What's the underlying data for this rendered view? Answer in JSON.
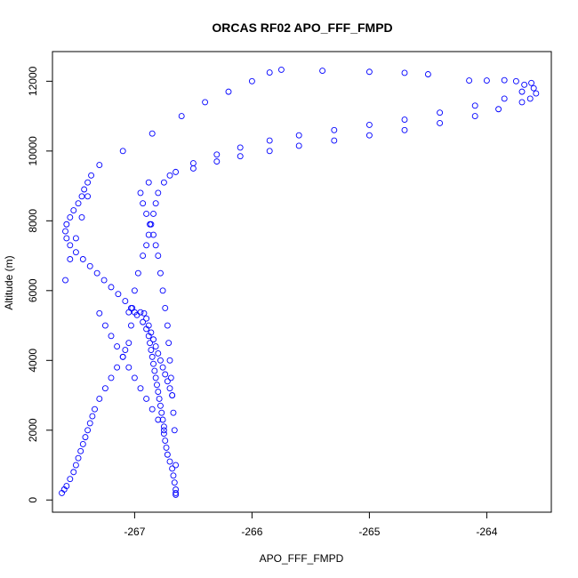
{
  "chart_data": {
    "type": "scatter",
    "title": "ORCAS RF02 APO_FFF_FMPD",
    "xlabel": "APO_FFF_FMPD",
    "ylabel": "Altitude (m)",
    "xlim": [
      -267.7,
      -263.45
    ],
    "ylim": [
      -350,
      12850
    ],
    "xticks": [
      -267,
      -266,
      -265,
      -264
    ],
    "yticks": [
      0,
      2000,
      4000,
      6000,
      8000,
      10000,
      12000
    ],
    "grid": false,
    "legend": "none",
    "marker_color": "#0000ff",
    "series": [
      {
        "x": [
          -266.65,
          -266.65,
          -266.66,
          -266.67,
          -266.68,
          -266.7,
          -266.72,
          -266.73,
          -266.74,
          -266.75,
          -266.75,
          -266.76,
          -266.77,
          -266.78,
          -266.79,
          -266.8,
          -266.81,
          -266.82,
          -266.83,
          -266.84,
          -266.85,
          -266.86,
          -266.87,
          -266.88,
          -266.9,
          -266.93,
          -266.98,
          -267.03,
          -267.08,
          -267.14,
          -267.2,
          -267.26,
          -267.32,
          -267.38,
          -267.44,
          -267.5,
          -267.55,
          -267.58,
          -267.59,
          -267.58,
          -267.55,
          -267.52,
          -267.48,
          -267.45,
          -267.43,
          -267.4,
          -267.37,
          -267.3,
          -267.1,
          -266.85,
          -266.6,
          -266.4,
          -266.2,
          -266.0,
          -265.85,
          -265.75,
          -265.4,
          -265.0,
          -264.7,
          -264.5
        ],
        "y": [
          150,
          300,
          500,
          700,
          900,
          1100,
          1300,
          1500,
          1700,
          1900,
          2100,
          2300,
          2500,
          2700,
          2900,
          3100,
          3300,
          3500,
          3700,
          3900,
          4100,
          4300,
          4500,
          4700,
          4900,
          5100,
          5300,
          5500,
          5700,
          5900,
          6100,
          6300,
          6500,
          6700,
          6900,
          7100,
          7300,
          7500,
          7700,
          7900,
          8100,
          8300,
          8500,
          8700,
          8900,
          9100,
          9300,
          9600,
          10000,
          10500,
          11000,
          11400,
          11700,
          12000,
          12250,
          12330,
          12300,
          12270,
          12240,
          12200
        ]
      },
      {
        "x": [
          -263.62,
          -263.6,
          -263.58,
          -263.63,
          -263.7,
          -263.9,
          -264.1,
          -264.4,
          -264.7,
          -265.0,
          -265.3,
          -265.6,
          -265.85,
          -266.1,
          -266.3,
          -266.5,
          -266.7,
          -266.88,
          -266.95,
          -266.93,
          -266.9,
          -266.87,
          -266.84,
          -266.82,
          -266.8,
          -266.78,
          -266.76,
          -266.74,
          -266.72,
          -266.71,
          -266.7,
          -266.69,
          -266.68,
          -266.67,
          -266.66,
          -266.65,
          -266.65
        ],
        "y": [
          11950,
          11800,
          11650,
          11500,
          11400,
          11200,
          11000,
          10800,
          10600,
          10450,
          10300,
          10150,
          10000,
          9850,
          9700,
          9500,
          9300,
          9100,
          8800,
          8500,
          8200,
          7900,
          7600,
          7300,
          7000,
          6500,
          6000,
          5500,
          5000,
          4500,
          4000,
          3500,
          3000,
          2500,
          2000,
          1000,
          200
        ]
      },
      {
        "x": [
          -264.15,
          -264.0,
          -263.85,
          -263.75,
          -263.68,
          -263.7,
          -263.85,
          -264.1,
          -264.4,
          -264.7,
          -265.0,
          -265.3,
          -265.6,
          -265.85,
          -266.1,
          -266.3,
          -266.5,
          -266.65,
          -266.75,
          -266.8,
          -266.82,
          -266.84,
          -266.86,
          -266.88,
          -266.9,
          -266.93,
          -266.97,
          -267.0,
          -267.02,
          -267.03,
          -267.05,
          -267.08,
          -267.1,
          -267.15,
          -267.2,
          -267.25,
          -267.3,
          -267.34,
          -267.36,
          -267.38,
          -267.4,
          -267.42,
          -267.44,
          -267.46,
          -267.48,
          -267.5,
          -267.52,
          -267.55,
          -267.58,
          -267.6,
          -267.62,
          -267.59,
          -267.55,
          -267.5,
          -267.45,
          -267.4
        ],
        "y": [
          12020,
          12020,
          12030,
          12000,
          11900,
          11700,
          11500,
          11300,
          11100,
          10900,
          10750,
          10600,
          10450,
          10300,
          10100,
          9900,
          9650,
          9400,
          9100,
          8800,
          8500,
          8200,
          7900,
          7600,
          7300,
          7000,
          6500,
          6000,
          5500,
          5000,
          4500,
          4300,
          4100,
          3800,
          3500,
          3200,
          2900,
          2600,
          2400,
          2200,
          2000,
          1800,
          1600,
          1400,
          1200,
          1000,
          800,
          600,
          400,
          300,
          200,
          6300,
          6900,
          7500,
          8100,
          8700
        ]
      },
      {
        "x": [
          -266.92,
          -266.9,
          -266.88,
          -266.86,
          -266.84,
          -266.82,
          -266.8,
          -266.78,
          -266.76,
          -266.74,
          -266.72,
          -266.7,
          -266.68,
          -267.05,
          -267.0,
          -266.95,
          -267.3,
          -267.25,
          -267.2,
          -267.15,
          -267.1,
          -267.05,
          -267.0,
          -266.95,
          -266.9,
          -266.85,
          -266.8,
          -266.75
        ],
        "y": [
          5350,
          5200,
          5000,
          4800,
          4600,
          4400,
          4200,
          4000,
          3800,
          3600,
          3400,
          3200,
          3000,
          5380,
          5380,
          5380,
          5350,
          5000,
          4700,
          4400,
          4100,
          3800,
          3500,
          3200,
          2900,
          2600,
          2300,
          2000
        ]
      }
    ]
  }
}
